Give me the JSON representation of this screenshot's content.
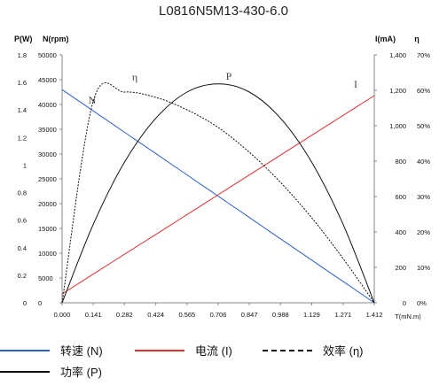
{
  "chart_data": {
    "type": "line",
    "title": "L0816N5M13-430-6.0",
    "x": [
      0.0,
      0.141,
      0.282,
      0.424,
      0.565,
      0.706,
      0.847,
      0.988,
      1.129,
      1.271,
      1.412
    ],
    "x_tick_labels": [
      "0.000",
      "0.141",
      "0.282",
      "0.424",
      "0.565",
      "0.706",
      "0.847",
      "0.988",
      "1.129",
      "1.271",
      "1.412"
    ],
    "xlabel": "T(mN.m)",
    "xlim": [
      0,
      1.412
    ],
    "axes": {
      "power": {
        "label": "P(W)",
        "ticks": [
          "0",
          "0.2",
          "0.4",
          "0.6",
          "0.8",
          "1",
          "1.2",
          "1.4",
          "1.6",
          "1.8"
        ],
        "range": [
          0,
          1.8
        ]
      },
      "speed": {
        "label": "N(rpm)",
        "ticks": [
          "0",
          "5000",
          "10000",
          "15000",
          "20000",
          "25000",
          "30000",
          "35000",
          "40000",
          "45000",
          "50000"
        ],
        "range": [
          0,
          50000
        ]
      },
      "current": {
        "label": "I(mA)",
        "ticks": [
          "0",
          "200",
          "400",
          "600",
          "800",
          "1,000",
          "1,200",
          "1,400"
        ],
        "range": [
          0,
          1400
        ]
      },
      "efficiency": {
        "label": "η",
        "ticks": [
          "0%",
          "10%",
          "20%",
          "30%",
          "40%",
          "50%",
          "60%",
          "70%"
        ],
        "range": [
          0,
          70
        ]
      }
    },
    "series": [
      {
        "name": "转速 (N)",
        "axis": "speed",
        "color": "#2b5fc9",
        "style": "solid",
        "curve_label": "N",
        "values": [
          43000,
          38700,
          34400,
          30100,
          25800,
          21500,
          17200,
          12900,
          8600,
          4300,
          0
        ]
      },
      {
        "name": "电流 (I)",
        "axis": "current",
        "color": "#e03030",
        "style": "solid",
        "curve_label": "I",
        "values": [
          50,
          162,
          274,
          386,
          498,
          610,
          722,
          834,
          946,
          1058,
          1170
        ]
      },
      {
        "name": "效率 (η)",
        "axis": "efficiency",
        "color": "#111111",
        "style": "dashed",
        "curve_label": "η",
        "values": [
          0,
          57,
          59.5,
          58,
          54.5,
          49.5,
          42.5,
          34,
          24,
          12.5,
          0
        ]
      },
      {
        "name": "功率 (P)",
        "axis": "power",
        "color": "#111111",
        "style": "solid",
        "curve_label": "P",
        "values": [
          0,
          0.57,
          1.02,
          1.34,
          1.53,
          1.59,
          1.53,
          1.34,
          1.02,
          0.57,
          0
        ]
      }
    ],
    "grid": false,
    "legend_position": "bottom"
  }
}
